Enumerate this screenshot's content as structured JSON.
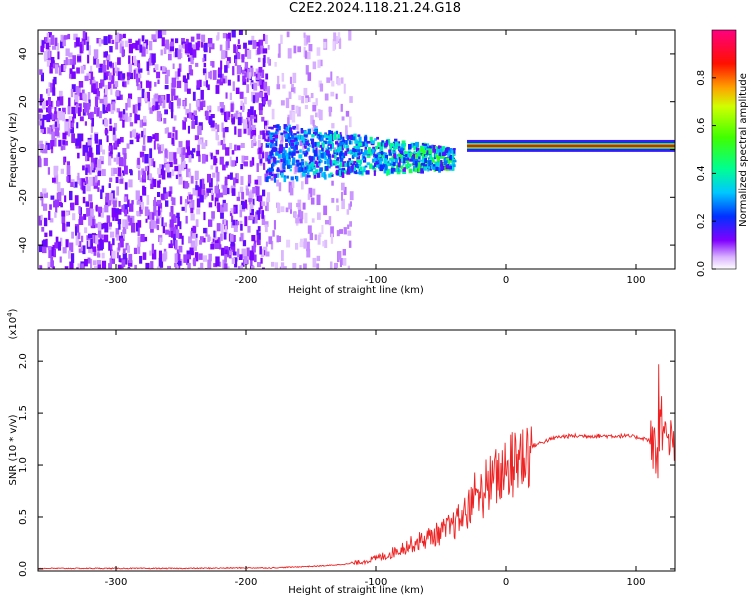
{
  "chart_data": [
    {
      "type": "heatmap",
      "title": "C2E2.2024.118.21.24.G18",
      "xlabel": "Height of straight line (km)",
      "ylabel": "Frequency (Hz)",
      "xlim": [
        -360,
        130
      ],
      "ylim": [
        -50,
        50
      ],
      "x_ticks": [
        -300,
        -200,
        -100,
        0,
        100
      ],
      "y_ticks": [
        -40,
        -20,
        0,
        20,
        40
      ],
      "colorbar": {
        "label": "Normalized spectral amplitude",
        "range": [
          0.0,
          1.0
        ],
        "ticks": [
          0.0,
          0.2,
          0.4,
          0.6,
          0.8
        ],
        "colormap": "rainbow: white, purple, blue, cyan, green, yellow, red, magenta"
      },
      "features": {
        "noise_region": {
          "x_range": [
            -360,
            -185
          ],
          "freq_range": [
            -50,
            50
          ]
        },
        "sparse_noise_region": {
          "x_range": [
            -185,
            -120
          ]
        },
        "transition_band": {
          "x_range": [
            -185,
            -40
          ],
          "center_freq_hz": 0,
          "half_width_hz": [
            12,
            4
          ]
        },
        "carrier_line": {
          "x_range": [
            -30,
            130
          ],
          "center_freq_hz": 1.5
        }
      }
    },
    {
      "type": "line",
      "title": "",
      "xlabel": "Height of straight line (km)",
      "ylabel": "SNR (10 * v/v)",
      "y_scale_label": "(x10",
      "y_scale_exponent": "4",
      "y_scale_suffix": ")",
      "xlim": [
        -360,
        130
      ],
      "ylim": [
        -0.02,
        2.3
      ],
      "x_ticks": [
        -300,
        -200,
        -100,
        0,
        100
      ],
      "y_ticks": [
        0.0,
        0.5,
        1.0,
        1.5,
        2.0
      ],
      "series": [
        {
          "color": "#ee2222",
          "x": [
            -360,
            -300,
            -250,
            -200,
            -180,
            -160,
            -140,
            -120,
            -110,
            -100,
            -90,
            -80,
            -70,
            -60,
            -50,
            -40,
            -30,
            -20,
            -10,
            0,
            10,
            20,
            30,
            40,
            50,
            60,
            70,
            80,
            90,
            100,
            105,
            110,
            113,
            115,
            117,
            119,
            121,
            125,
            130
          ],
          "y": [
            0.005,
            0.005,
            0.005,
            0.01,
            0.01,
            0.02,
            0.03,
            0.05,
            0.07,
            0.1,
            0.14,
            0.2,
            0.25,
            0.3,
            0.35,
            0.42,
            0.55,
            0.7,
            0.85,
            0.95,
            1.05,
            1.18,
            1.23,
            1.27,
            1.28,
            1.28,
            1.28,
            1.28,
            1.28,
            1.27,
            1.26,
            1.24,
            1.2,
            1.1,
            0.95,
            1.6,
            1.22,
            1.22,
            1.21
          ]
        }
      ]
    }
  ]
}
